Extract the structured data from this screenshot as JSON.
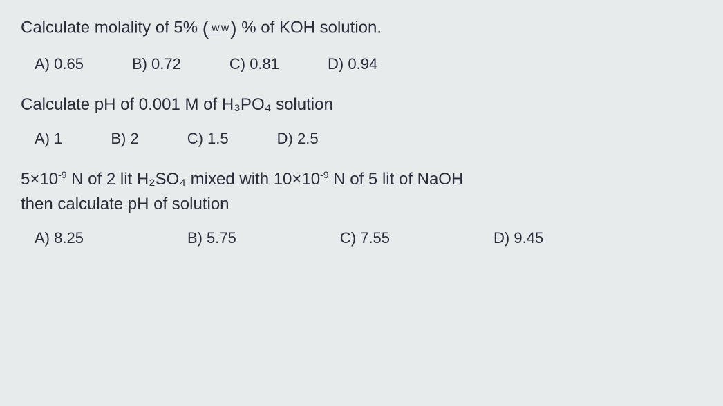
{
  "q1": {
    "prompt_before": "Calculate molality of 5%",
    "frac_top": "w",
    "frac_bot": "w",
    "prompt_after": "% of KOH solution.",
    "options": {
      "a": "A) 0.65",
      "b": "B) 0.72",
      "c": "C) 0.81",
      "d": "D) 0.94"
    }
  },
  "q2": {
    "prompt": "Calculate pH of   0.001 M of H₃PO₄ solution",
    "options": {
      "a": "A) 1",
      "b": "B) 2",
      "c": "C) 1.5",
      "d": "D) 2.5"
    }
  },
  "q3": {
    "line1_pre": "5×10",
    "line1_exp1": "-9",
    "line1_mid1": " N of 2 lit H₂SO₄ mixed with 10×10",
    "line1_exp2": "-9",
    "line1_post": " N of 5 lit of NaOH",
    "line2": "then calculate pH of solution",
    "options": {
      "a": "A) 8.25",
      "b": "B) 5.75",
      "c": "C) 7.55",
      "d": "D) 9.45"
    }
  }
}
